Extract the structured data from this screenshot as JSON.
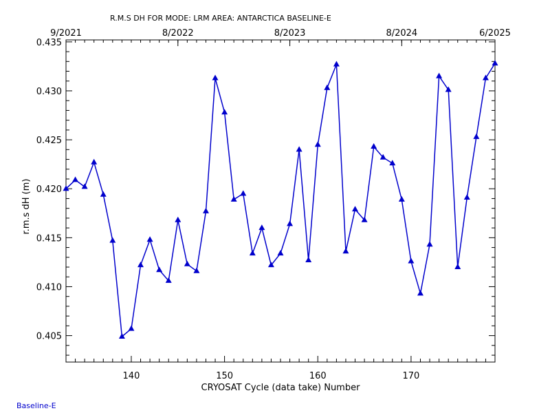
{
  "chart_data": {
    "type": "line",
    "title": "R.M.S DH FOR MODE: LRM AREA: ANTARCTICA BASELINE-E",
    "xlabel": "CRYOSAT Cycle (data take) Number",
    "ylabel": "r.m.s dH (m)",
    "xlim": [
      133,
      179
    ],
    "ylim": [
      0.4023,
      0.4352
    ],
    "x_ticks": [
      140,
      150,
      160,
      170
    ],
    "y_ticks": [
      0.405,
      0.41,
      0.415,
      0.42,
      0.425,
      0.43,
      0.435
    ],
    "top_axis_labels": [
      "9/2021",
      "8/2022",
      "8/2023",
      "8/2024",
      "6/2025"
    ],
    "top_axis_cycles": [
      133,
      145,
      157,
      169,
      179
    ],
    "line_color": "#0000cc",
    "marker": "triangle",
    "series": [
      {
        "x": [
          133,
          134,
          135,
          136,
          137,
          138,
          139,
          140,
          141,
          142,
          143,
          144,
          145,
          146,
          147,
          148,
          149,
          150,
          151,
          152,
          153,
          154,
          155,
          156,
          157,
          158,
          159,
          160,
          161,
          162,
          163,
          164,
          165,
          166,
          167,
          168,
          169,
          170,
          171,
          172,
          173,
          174,
          175,
          176,
          177,
          178,
          179
        ],
        "values": [
          0.42,
          0.4209,
          0.4202,
          0.4227,
          0.4194,
          0.4147,
          0.4049,
          0.4057,
          0.4122,
          0.4148,
          0.4117,
          0.4106,
          0.4168,
          0.4123,
          0.4116,
          0.4177,
          0.4313,
          0.4278,
          0.4189,
          0.4195,
          0.4134,
          0.416,
          0.4122,
          0.4134,
          0.4164,
          0.424,
          0.4127,
          0.4245,
          0.4303,
          0.4327,
          0.4136,
          0.4179,
          0.4168,
          0.4243,
          0.4232,
          0.4226,
          0.4189,
          0.4126,
          0.4093,
          0.4143,
          0.4315,
          0.4301,
          0.412,
          0.4191,
          0.4253,
          0.4313,
          0.4328
        ]
      }
    ]
  },
  "footer": {
    "text": "Baseline-E"
  }
}
